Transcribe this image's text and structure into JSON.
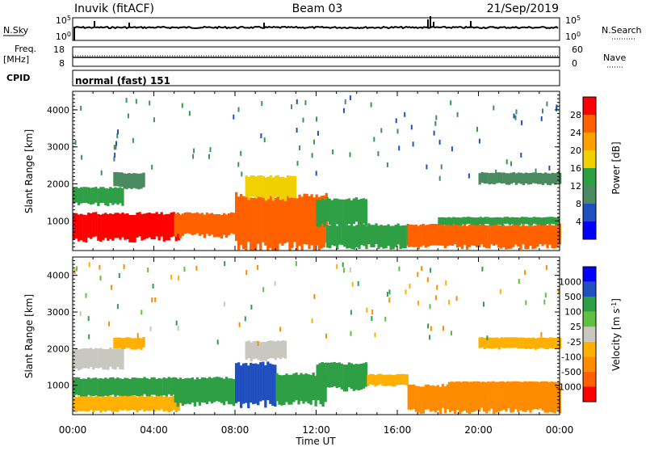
{
  "header": {
    "radar": "Inuvik (fitACF)",
    "beam": "Beam 03",
    "date": "21/Sep/2019"
  },
  "strips": {
    "nsky_label": "N.Sky",
    "nsky_tick_top": "10^5",
    "nsky_tick_bottom": "10^0",
    "nsearch_label": "N.Search",
    "nsearch_tick_top": "10^5",
    "nsearch_tick_bottom": "10^0",
    "freq_label": "Freq.",
    "freq_unit": "[MHz]",
    "freq_tick_top": "18",
    "freq_tick_bottom": "8",
    "nave_label": "Nave",
    "nave_tick_top": "60",
    "nave_tick_bottom": "0",
    "cpid_label": "CPID",
    "cpid_value": "normal (fast) 151"
  },
  "chart_data": [
    {
      "type": "heatmap",
      "panel": "power",
      "xlabel": "",
      "ylabel": "Slant Range [km]",
      "x_ticks": [
        "00:00",
        "04:00",
        "08:00",
        "12:00",
        "16:00",
        "20:00",
        "00:00"
      ],
      "y_ticks": [
        1000,
        2000,
        3000,
        4000
      ],
      "ylim": [
        200,
        4500
      ],
      "colorbar_label": "Power [dB]",
      "colorbar_ticks": [
        "28",
        "24",
        "20",
        "16",
        "12",
        "8",
        "4"
      ],
      "colorbar_colors": [
        "#0000ff",
        "#2050c0",
        "#4a8a60",
        "#2f9f45",
        "#f0d000",
        "#ffa000",
        "#ff6000",
        "#ff0000"
      ],
      "bands": [
        {
          "start_h": 0.0,
          "end_h": 5.2,
          "r_low": 500,
          "r_high": 1200,
          "level": 28
        },
        {
          "start_h": 0.0,
          "end_h": 2.5,
          "r_low": 1450,
          "r_high": 1900,
          "level": 14
        },
        {
          "start_h": 2.0,
          "end_h": 3.5,
          "r_low": 1900,
          "r_high": 2300,
          "level": 10
        },
        {
          "start_h": 5.0,
          "end_h": 8.5,
          "r_low": 600,
          "r_high": 1200,
          "level": 26
        },
        {
          "start_h": 8.0,
          "end_h": 12.5,
          "r_low": 300,
          "r_high": 1700,
          "level": 26
        },
        {
          "start_h": 8.5,
          "end_h": 11.0,
          "r_low": 1600,
          "r_high": 2200,
          "level": 16
        },
        {
          "start_h": 12.0,
          "end_h": 14.5,
          "r_low": 900,
          "r_high": 1600,
          "level": 14
        },
        {
          "start_h": 12.5,
          "end_h": 16.5,
          "r_low": 300,
          "r_high": 900,
          "level": 12
        },
        {
          "start_h": 16.5,
          "end_h": 24.0,
          "r_low": 300,
          "r_high": 900,
          "level": 26
        },
        {
          "start_h": 18.0,
          "end_h": 24.0,
          "r_low": 900,
          "r_high": 1100,
          "level": 12
        },
        {
          "start_h": 20.0,
          "end_h": 24.0,
          "r_low": 2000,
          "r_high": 2300,
          "level": 8
        }
      ]
    },
    {
      "type": "heatmap",
      "panel": "velocity",
      "xlabel": "Time UT",
      "ylabel": "Slant Range [km]",
      "x_ticks": [
        "00:00",
        "04:00",
        "08:00",
        "12:00",
        "16:00",
        "20:00",
        "00:00"
      ],
      "y_ticks": [
        1000,
        2000,
        3000,
        4000
      ],
      "ylim": [
        200,
        4500
      ],
      "colorbar_label": "Velocity [m s^-1]",
      "colorbar_ticks": [
        "1000",
        "500",
        "100",
        "25",
        "-25",
        "-100",
        "-500",
        "-1000"
      ],
      "colorbar_colors": [
        "#ff0000",
        "#ff6000",
        "#ff8c00",
        "#ffb000",
        "#c8c8c0",
        "#60c040",
        "#2f9f45",
        "#2050c0",
        "#0000ff"
      ],
      "bands": [
        {
          "start_h": 0.0,
          "end_h": 5.2,
          "r_low": 700,
          "r_high": 1200,
          "level": 100
        },
        {
          "start_h": 0.0,
          "end_h": 5.2,
          "r_low": 300,
          "r_high": 700,
          "level": -100
        },
        {
          "start_h": 0.0,
          "end_h": 2.5,
          "r_low": 1450,
          "r_high": 2000,
          "level": 0
        },
        {
          "start_h": 2.0,
          "end_h": 3.5,
          "r_low": 2000,
          "r_high": 2300,
          "level": -100
        },
        {
          "start_h": 5.0,
          "end_h": 8.0,
          "r_low": 500,
          "r_high": 1200,
          "level": 100
        },
        {
          "start_h": 8.0,
          "end_h": 10.0,
          "r_low": 500,
          "r_high": 1600,
          "level": 600
        },
        {
          "start_h": 10.0,
          "end_h": 12.5,
          "r_low": 500,
          "r_high": 1300,
          "level": 100
        },
        {
          "start_h": 8.5,
          "end_h": 10.5,
          "r_low": 1700,
          "r_high": 2200,
          "level": 0
        },
        {
          "start_h": 12.0,
          "end_h": 14.5,
          "r_low": 900,
          "r_high": 1600,
          "level": 100
        },
        {
          "start_h": 14.5,
          "end_h": 16.5,
          "r_low": 1000,
          "r_high": 1300,
          "level": -100
        },
        {
          "start_h": 16.5,
          "end_h": 24.0,
          "r_low": 300,
          "r_high": 1000,
          "level": -150
        },
        {
          "start_h": 18.5,
          "end_h": 24.0,
          "r_low": 900,
          "r_high": 1100,
          "level": -300
        },
        {
          "start_h": 20.0,
          "end_h": 24.0,
          "r_low": 2000,
          "r_high": 2300,
          "level": -100
        }
      ]
    }
  ]
}
